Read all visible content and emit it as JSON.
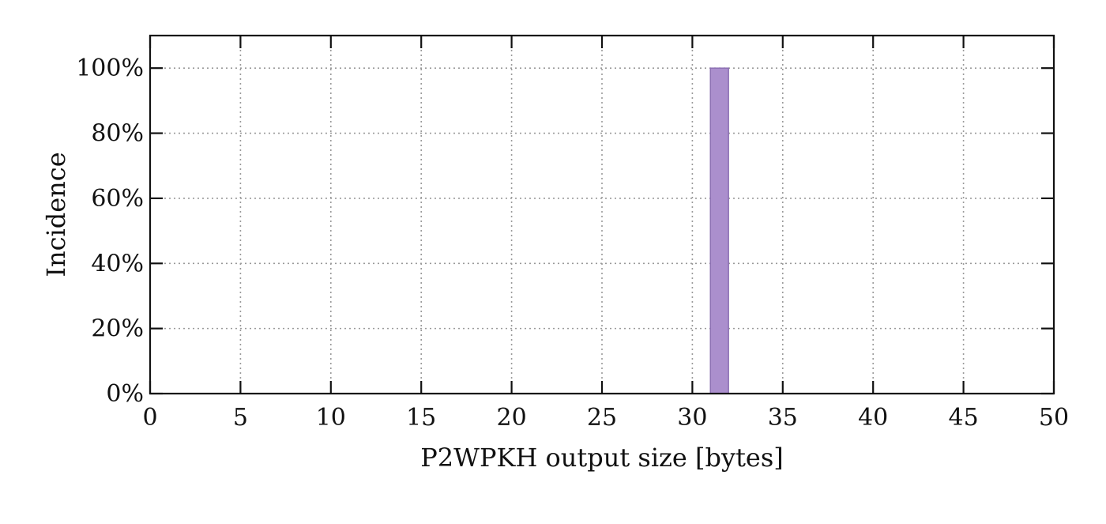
{
  "chart_data": {
    "type": "bar",
    "xlabel": "P2WPKH output size [bytes]",
    "ylabel": "Incidence",
    "xlim": [
      0,
      50
    ],
    "ylim": [
      0,
      110
    ],
    "xticks": [
      0,
      5,
      10,
      15,
      20,
      25,
      30,
      35,
      40,
      45,
      50
    ],
    "yticks": [
      0,
      20,
      40,
      60,
      80,
      100
    ],
    "ytick_labels": [
      "0%",
      "20%",
      "40%",
      "60%",
      "80%",
      "100%"
    ],
    "bars": [
      {
        "x_start": 31,
        "x_end": 32,
        "value": 100
      }
    ],
    "bar_color": "#ab8fcd",
    "bar_edge_color": "#8c70b3",
    "grid": true,
    "legend": "none"
  }
}
